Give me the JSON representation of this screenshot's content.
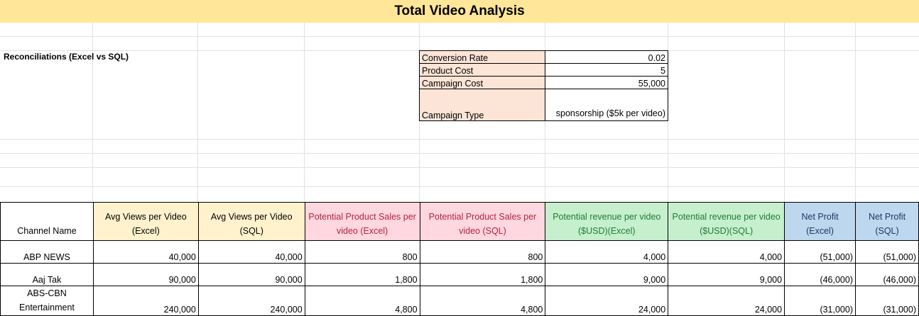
{
  "title": "Total Video Analysis",
  "section_label": "Reconciliations (Excel vs SQL)",
  "params": [
    {
      "label": "Conversion Rate",
      "value": "0.02"
    },
    {
      "label": "Product Cost",
      "value": "5"
    },
    {
      "label": "Campaign Cost",
      "value": "55,000"
    },
    {
      "label": "Campaign Type",
      "value": "sponsorship ($5k per video)"
    }
  ],
  "table": {
    "headers": [
      "Channel Name",
      "Avg Views per Video (Excel)",
      "Avg Views per Video (SQL)",
      "Potential Product Sales per video (Excel)",
      "Potential Product Sales per video (SQL)",
      "Potential revenue per video ($USD)(Excel)",
      "Potential revenue per video ($USD)(SQL)",
      "Net Profit (Excel)",
      "Net Profit (SQL)"
    ],
    "rows": [
      [
        "ABP NEWS",
        "40,000",
        "40,000",
        "800",
        "800",
        "4,000",
        "4,000",
        "(51,000)",
        "(51,000)"
      ],
      [
        "Aaj Tak",
        "90,000",
        "90,000",
        "1,800",
        "1,800",
        "9,000",
        "9,000",
        "(46,000)",
        "(46,000)"
      ],
      [
        "ABS-CBN Entertainment",
        "240,000",
        "240,000",
        "4,800",
        "4,800",
        "24,000",
        "24,000",
        "(31,000)",
        "(31,000)"
      ]
    ]
  },
  "colors": {
    "title_bg": "#FFE699",
    "param_label_bg": "#FCE4D6",
    "views_header_bg": "#FFF2CC",
    "sales_header_bg": "#FFD7E0",
    "sales_header_text": "#B0243B",
    "revenue_header_bg": "#C6EFCE",
    "revenue_header_text": "#1E7B34",
    "profit_header_bg": "#BDD7EE",
    "profit_header_text": "#1F3864"
  }
}
